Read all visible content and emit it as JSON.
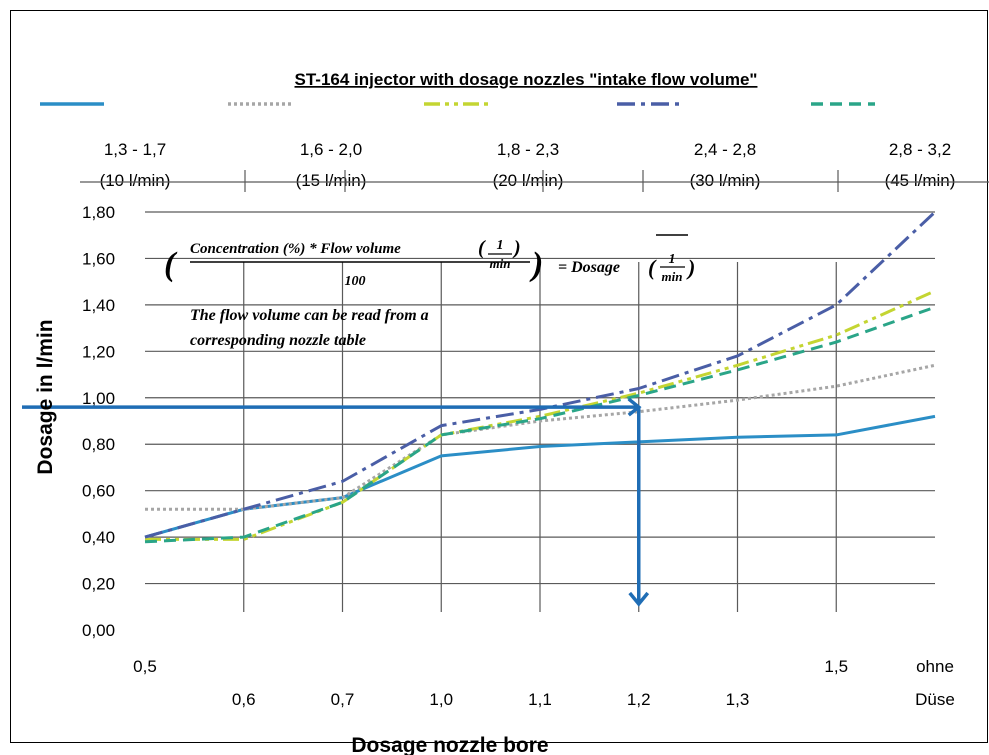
{
  "chart_data": {
    "type": "line",
    "title": "ST-164 injector with dosage nozzles \"intake flow volume\"",
    "xlabel": "Dosage nozzle bore",
    "ylabel": "Dosage in l/min",
    "ylim": [
      0,
      1.8
    ],
    "yticks": [
      "0,00",
      "0,20",
      "0,40",
      "0,60",
      "0,80",
      "1,00",
      "1,20",
      "1,40",
      "1,60",
      "1,80"
    ],
    "grid": true,
    "x": [
      "0,5",
      "0,6",
      "0,7",
      "1,0",
      "1,1",
      "1,2",
      "1,3",
      "1,5",
      "ohne Düse"
    ],
    "x_labels": [
      {
        "text": "0,5",
        "row": "upper"
      },
      {
        "text": "0,6",
        "row": "lower"
      },
      {
        "text": "0,7",
        "row": "lower"
      },
      {
        "text": "1,0",
        "row": "lower"
      },
      {
        "text": "1,1",
        "row": "lower"
      },
      {
        "text": "1,2",
        "row": "lower"
      },
      {
        "text": "1,3",
        "row": "lower"
      },
      {
        "text": "1,5",
        "row": "upper"
      },
      {
        "text": "ohne",
        "row": "upper"
      },
      {
        "text": "Düse",
        "row": "lower"
      }
    ],
    "legend_position": "top",
    "series": [
      {
        "name": "1,3 - 1,7",
        "name2": "(10 l/min)",
        "color": "#2b8ec6",
        "dash": "solid",
        "values": [
          0.4,
          0.52,
          0.57,
          0.75,
          0.79,
          0.81,
          0.83,
          0.84,
          0.92
        ]
      },
      {
        "name": "1,6 - 2,0",
        "name2": "(15 l/min)",
        "color": "#a6a6a6",
        "dash": "dot",
        "values": [
          0.52,
          0.52,
          0.57,
          0.84,
          0.9,
          0.94,
          0.99,
          1.05,
          1.14
        ]
      },
      {
        "name": "1,8 - 2,3",
        "name2": "(20 l/min)",
        "color": "#c4d532",
        "dash": "dashdotdot",
        "values": [
          0.39,
          0.39,
          0.55,
          0.84,
          0.92,
          1.02,
          1.14,
          1.27,
          1.46
        ]
      },
      {
        "name": "2,4 - 2,8",
        "name2": "(30 l/min)",
        "color": "#4a5ea6",
        "dash": "dashdot",
        "values": [
          0.4,
          0.52,
          0.64,
          0.88,
          0.95,
          1.04,
          1.18,
          1.4,
          1.8
        ]
      },
      {
        "name": "2,8 - 3,2",
        "name2": "(45 l/min)",
        "color": "#2aa588",
        "dash": "dash",
        "values": [
          0.38,
          0.4,
          0.55,
          0.84,
          0.91,
          1.01,
          1.12,
          1.24,
          1.39
        ]
      }
    ],
    "annotations": {
      "formula_numerator": "Concentration (%) * Flow volume",
      "formula_denominator": "100",
      "formula_result": "= Dosage",
      "unit_numerator": "1",
      "unit_denominator": "min",
      "note_line1": "The flow volume can be read from a",
      "note_line2": "corresponding nozzle table"
    },
    "reading_guide": {
      "color": "#1f6db5",
      "y_value": 0.96,
      "x_category": "1,2"
    }
  }
}
